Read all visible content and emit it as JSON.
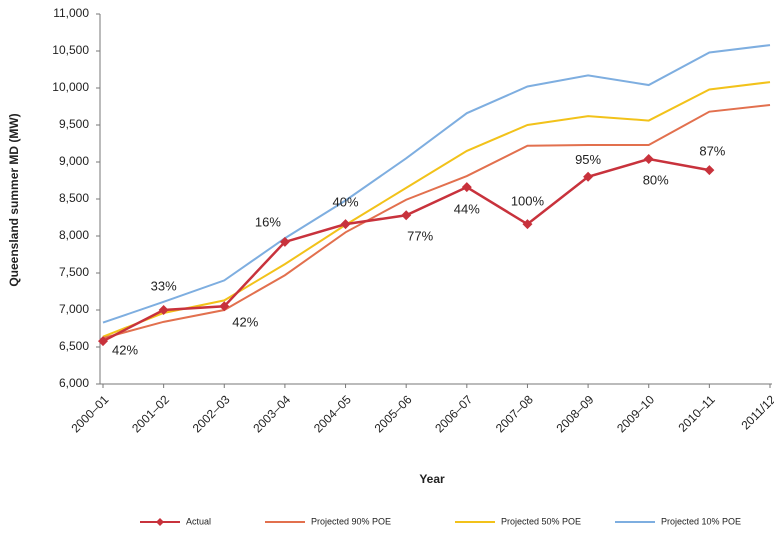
{
  "chart_data": {
    "type": "line",
    "y_label": "Queensland summer MD (MW)",
    "x_label": "Year",
    "categories": [
      "2000–01",
      "2001–02",
      "2002–03",
      "2003–04",
      "2004–05",
      "2005–06",
      "2006–07",
      "2007–08",
      "2008–09",
      "2009–10",
      "2010–11",
      "2011/12"
    ],
    "series": [
      {
        "name": "Actual",
        "color": "#c8323c",
        "marker": "diamond",
        "values": [
          6580,
          7000,
          7050,
          7920,
          8160,
          8280,
          8660,
          8160,
          8800,
          9040,
          8890,
          null
        ],
        "point_labels": [
          "42%",
          "33%",
          "42%",
          "16%",
          "40%",
          "77%",
          "44%",
          "100%",
          "95%",
          "80%",
          "87%",
          null
        ]
      },
      {
        "name": "Projected 90% POE",
        "color": "#e2704e",
        "values": [
          6620,
          6840,
          7000,
          7470,
          8050,
          8490,
          8810,
          9220,
          9230,
          9230,
          9680,
          9770
        ]
      },
      {
        "name": "Projected 50% POE",
        "color": "#f2c21a",
        "values": [
          6640,
          6960,
          7130,
          7620,
          8150,
          8650,
          9150,
          9500,
          9620,
          9560,
          9980,
          10080
        ]
      },
      {
        "name": "Projected 10% POE",
        "color": "#7eaee0",
        "values": [
          6830,
          7110,
          7400,
          7970,
          8480,
          9050,
          9660,
          10020,
          10170,
          10040,
          10480,
          10580
        ]
      }
    ],
    "ylim": [
      6000,
      11000
    ],
    "yticks": [
      {
        "value": 6000,
        "label": "6,000"
      },
      {
        "value": 6500,
        "label": "6,500"
      },
      {
        "value": 7000,
        "label": "7,000"
      },
      {
        "value": 7500,
        "label": "7,500"
      },
      {
        "value": 8000,
        "label": "8,000"
      },
      {
        "value": 8500,
        "label": "8,500"
      },
      {
        "value": 9000,
        "label": "9,000"
      },
      {
        "value": 9500,
        "label": "9,500"
      },
      {
        "value": 10000,
        "label": "10,000"
      },
      {
        "value": 10500,
        "label": "10,500"
      },
      {
        "value": 11000,
        "label": "11,000"
      }
    ],
    "grid": false,
    "legend": "bottom"
  }
}
